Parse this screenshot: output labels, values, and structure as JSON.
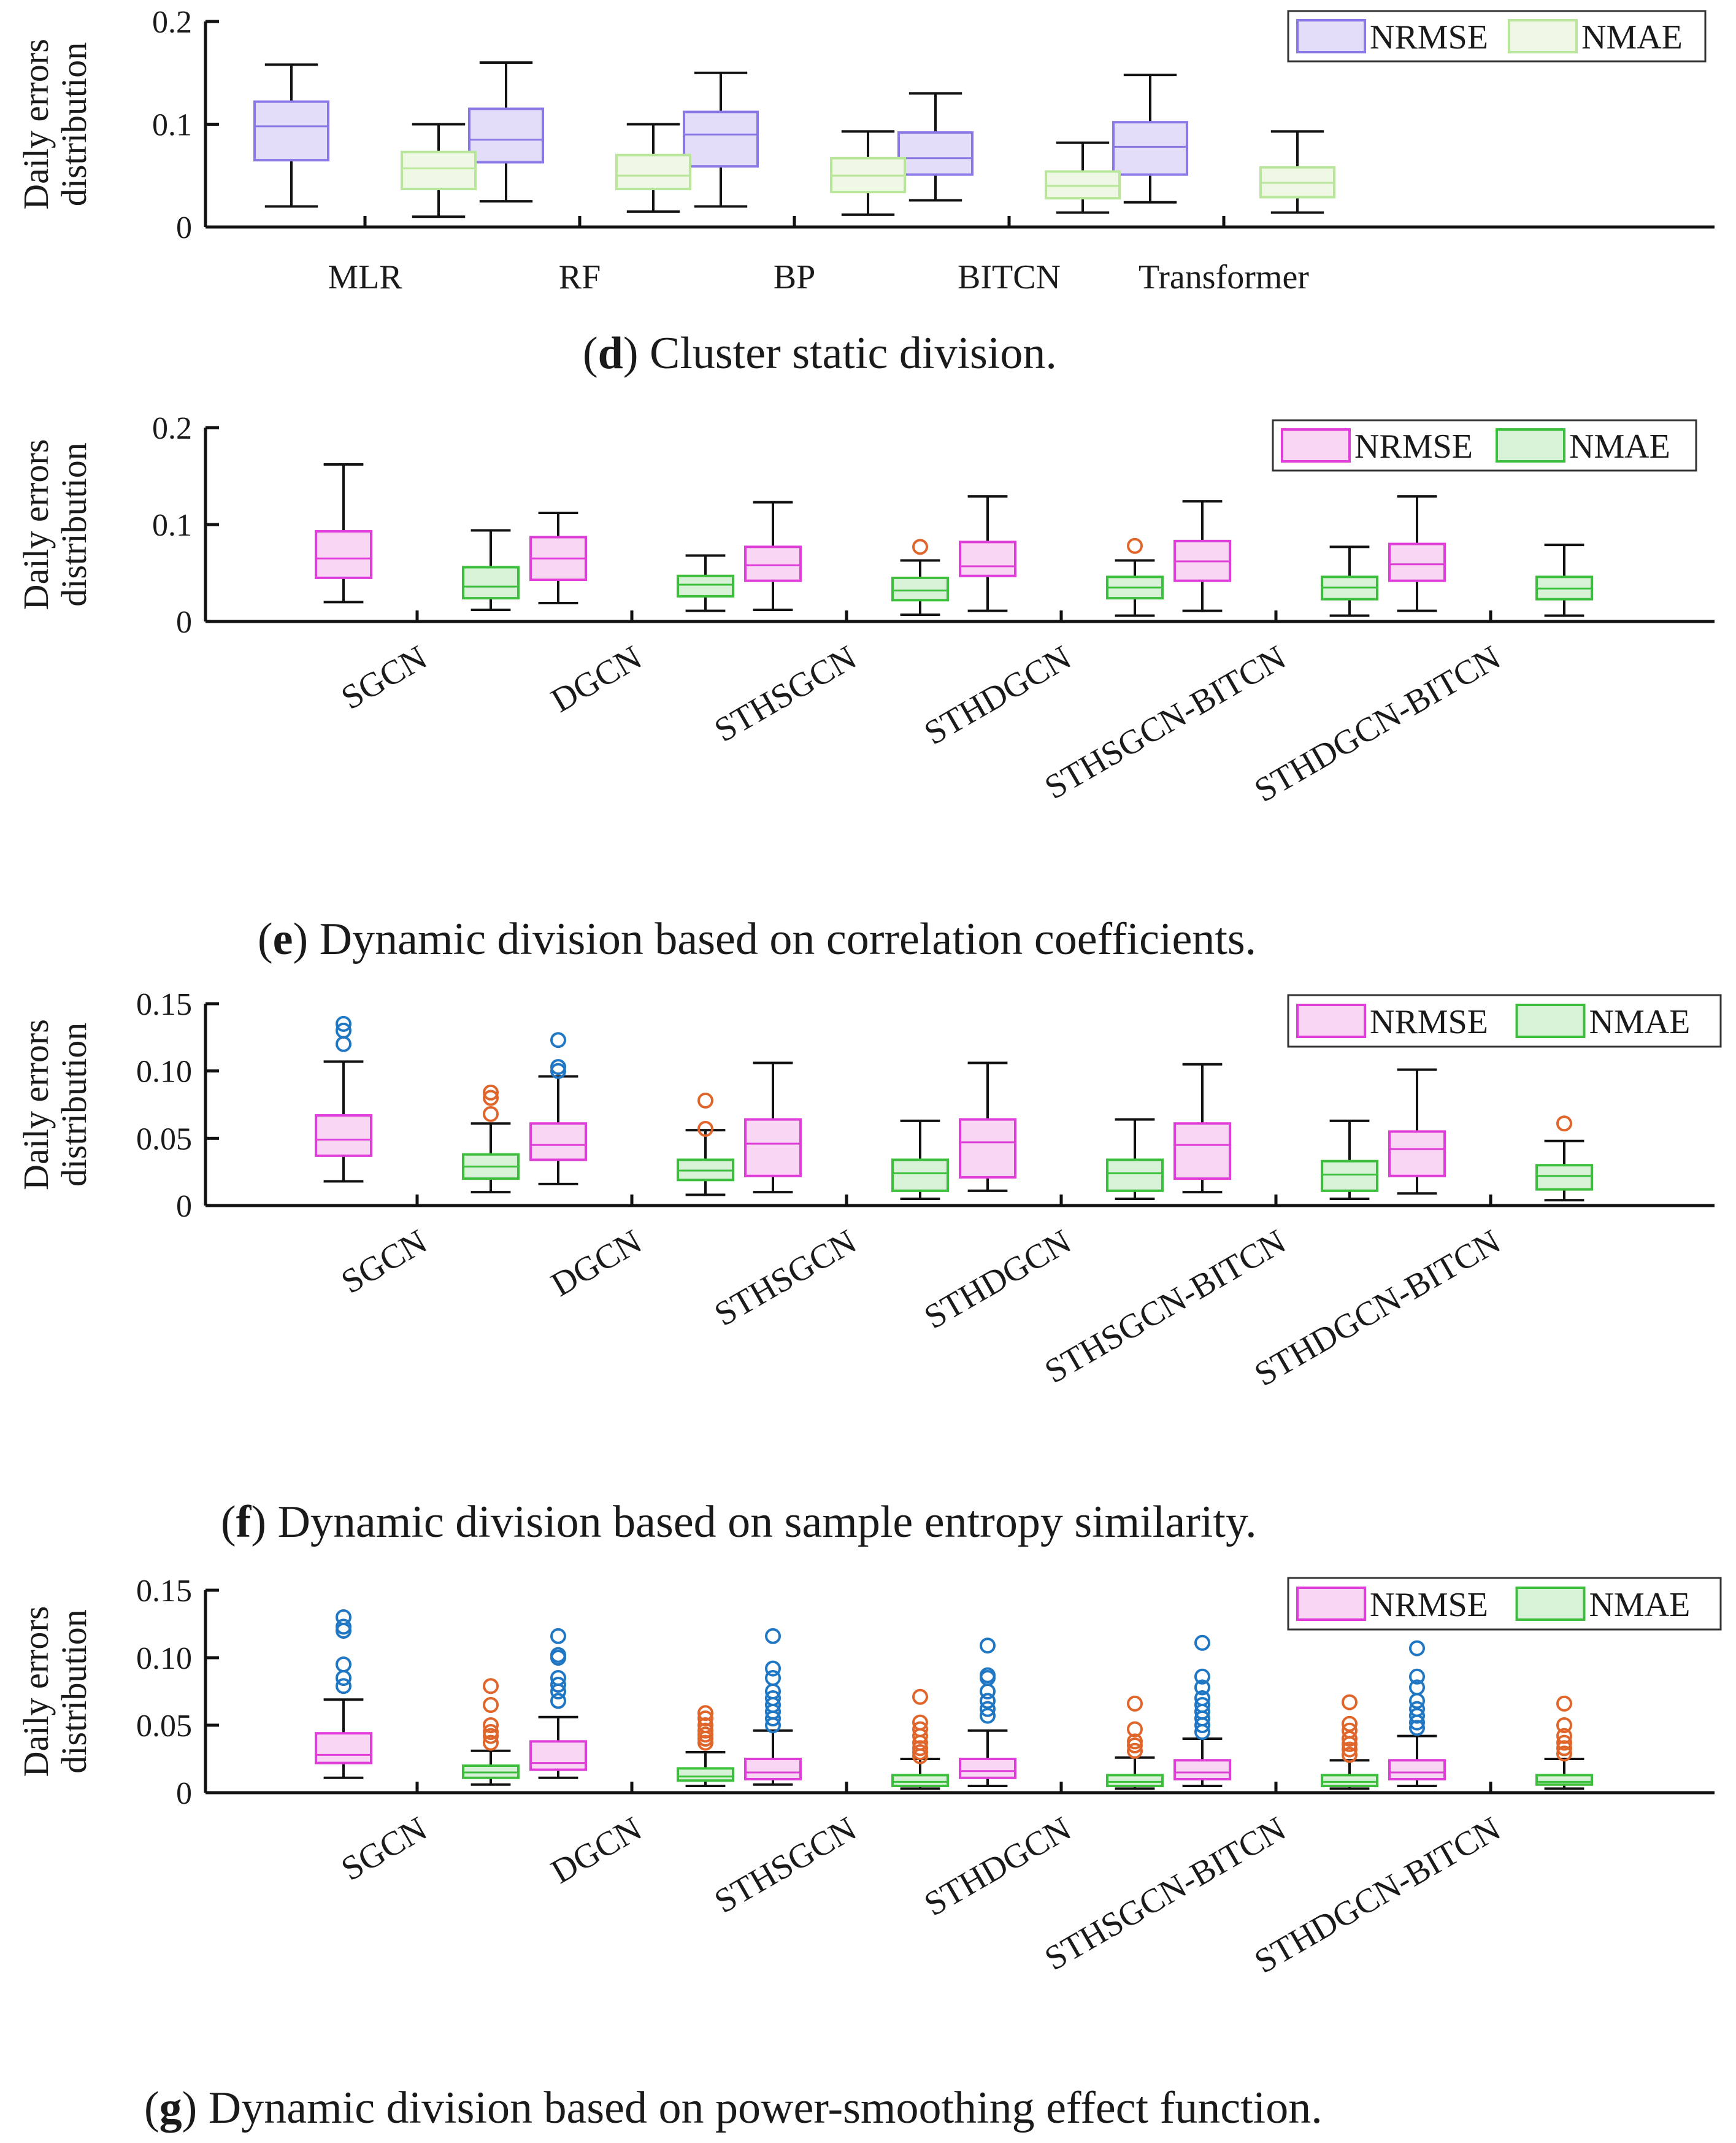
{
  "chart_data": [
    {
      "id": "d",
      "type": "boxplot",
      "caption_letter": "d",
      "caption_text": "Cluster static division.",
      "ylabel": [
        "Daily errors",
        "distribution"
      ],
      "ylim": [
        0,
        0.2
      ],
      "yticks": [
        0,
        0.1,
        0.2
      ],
      "ytick_labels": [
        "0",
        "0.1",
        "0.2"
      ],
      "categories": [
        "MLR",
        "RF",
        "BP",
        "BITCN",
        "Transformer"
      ],
      "rotate_labels": false,
      "colors": {
        "NRMSE": {
          "stroke": "#8a78e6",
          "fill": "#e3ddfa"
        },
        "NMAE": {
          "stroke": "#b9e69a",
          "fill": "#eef8e4"
        }
      },
      "legend": [
        "NRMSE",
        "NMAE"
      ],
      "series": [
        {
          "name": "NRMSE",
          "boxes": [
            {
              "min": 0.02,
              "q1": 0.065,
              "median": 0.098,
              "q3": 0.122,
              "max": 0.158,
              "outliers": []
            },
            {
              "min": 0.025,
              "q1": 0.063,
              "median": 0.085,
              "q3": 0.115,
              "max": 0.16,
              "outliers": []
            },
            {
              "min": 0.02,
              "q1": 0.059,
              "median": 0.09,
              "q3": 0.112,
              "max": 0.15,
              "outliers": []
            },
            {
              "min": 0.026,
              "q1": 0.051,
              "median": 0.067,
              "q3": 0.092,
              "max": 0.13,
              "outliers": []
            },
            {
              "min": 0.024,
              "q1": 0.051,
              "median": 0.078,
              "q3": 0.102,
              "max": 0.148,
              "outliers": []
            }
          ]
        },
        {
          "name": "NMAE",
          "boxes": [
            {
              "min": 0.01,
              "q1": 0.037,
              "median": 0.057,
              "q3": 0.073,
              "max": 0.1,
              "outliers": []
            },
            {
              "min": 0.015,
              "q1": 0.037,
              "median": 0.05,
              "q3": 0.07,
              "max": 0.1,
              "outliers": []
            },
            {
              "min": 0.012,
              "q1": 0.034,
              "median": 0.05,
              "q3": 0.067,
              "max": 0.093,
              "outliers": []
            },
            {
              "min": 0.014,
              "q1": 0.028,
              "median": 0.04,
              "q3": 0.054,
              "max": 0.082,
              "outliers": []
            },
            {
              "min": 0.014,
              "q1": 0.029,
              "median": 0.043,
              "q3": 0.058,
              "max": 0.093,
              "outliers": []
            }
          ]
        }
      ]
    },
    {
      "id": "e",
      "type": "boxplot",
      "caption_letter": "e",
      "caption_text": "Dynamic division based on correlation coefficients.",
      "ylabel": [
        "Daily errors",
        "distribution"
      ],
      "ylim": [
        0,
        0.2
      ],
      "yticks": [
        0,
        0.1,
        0.2
      ],
      "ytick_labels": [
        "0",
        "0.1",
        "0.2"
      ],
      "categories": [
        "SGCN",
        "DGCN",
        "STHSGCN",
        "STHDGCN",
        "STHSGCN-BITCN",
        "STHDGCN-BITCN"
      ],
      "rotate_labels": true,
      "colors": {
        "NRMSE": {
          "stroke": "#e03ed8",
          "fill": "#f8d6f4"
        },
        "NMAE": {
          "stroke": "#3dbf3d",
          "fill": "#d8f2d8"
        }
      },
      "outlier_colors": {
        "NRMSE": "#1f77c4",
        "NMAE": "#e0652a"
      },
      "legend": [
        "NRMSE",
        "NMAE"
      ],
      "series": [
        {
          "name": "NRMSE",
          "boxes": [
            {
              "min": 0.02,
              "q1": 0.045,
              "median": 0.065,
              "q3": 0.093,
              "max": 0.162,
              "outliers": []
            },
            {
              "min": 0.019,
              "q1": 0.043,
              "median": 0.065,
              "q3": 0.087,
              "max": 0.112,
              "outliers": []
            },
            {
              "min": 0.012,
              "q1": 0.042,
              "median": 0.058,
              "q3": 0.077,
              "max": 0.123,
              "outliers": []
            },
            {
              "min": 0.011,
              "q1": 0.047,
              "median": 0.057,
              "q3": 0.082,
              "max": 0.129,
              "outliers": []
            },
            {
              "min": 0.011,
              "q1": 0.042,
              "median": 0.062,
              "q3": 0.083,
              "max": 0.124,
              "outliers": []
            },
            {
              "min": 0.011,
              "q1": 0.042,
              "median": 0.059,
              "q3": 0.08,
              "max": 0.129,
              "outliers": []
            }
          ]
        },
        {
          "name": "NMAE",
          "boxes": [
            {
              "min": 0.012,
              "q1": 0.024,
              "median": 0.036,
              "q3": 0.056,
              "max": 0.094,
              "outliers": []
            },
            {
              "min": 0.011,
              "q1": 0.026,
              "median": 0.038,
              "q3": 0.047,
              "max": 0.068,
              "outliers": []
            },
            {
              "min": 0.007,
              "q1": 0.022,
              "median": 0.032,
              "q3": 0.045,
              "max": 0.063,
              "outliers": [
                0.077
              ]
            },
            {
              "min": 0.006,
              "q1": 0.024,
              "median": 0.035,
              "q3": 0.046,
              "max": 0.063,
              "outliers": [
                0.078
              ]
            },
            {
              "min": 0.006,
              "q1": 0.023,
              "median": 0.035,
              "q3": 0.046,
              "max": 0.077,
              "outliers": []
            },
            {
              "min": 0.006,
              "q1": 0.023,
              "median": 0.034,
              "q3": 0.046,
              "max": 0.079,
              "outliers": []
            }
          ]
        }
      ]
    },
    {
      "id": "f",
      "type": "boxplot",
      "caption_letter": "f",
      "caption_text": "Dynamic division based on sample entropy similarity.",
      "ylabel": [
        "Daily errors",
        "distribution"
      ],
      "ylim": [
        0,
        0.15
      ],
      "yticks": [
        0,
        0.05,
        0.1,
        0.15
      ],
      "ytick_labels": [
        "0",
        "0.05",
        "0.10",
        "0.15"
      ],
      "categories": [
        "SGCN",
        "DGCN",
        "STHSGCN",
        "STHDGCN",
        "STHSGCN-BITCN",
        "STHDGCN-BITCN"
      ],
      "rotate_labels": true,
      "colors": {
        "NRMSE": {
          "stroke": "#e03ed8",
          "fill": "#f8d6f4"
        },
        "NMAE": {
          "stroke": "#3dbf3d",
          "fill": "#d8f2d8"
        }
      },
      "outlier_colors": {
        "NRMSE": "#1f77c4",
        "NMAE": "#e0652a"
      },
      "legend": [
        "NRMSE",
        "NMAE"
      ],
      "series": [
        {
          "name": "NRMSE",
          "boxes": [
            {
              "min": 0.018,
              "q1": 0.037,
              "median": 0.049,
              "q3": 0.067,
              "max": 0.107,
              "outliers": [
                0.12,
                0.13,
                0.135
              ]
            },
            {
              "min": 0.016,
              "q1": 0.034,
              "median": 0.045,
              "q3": 0.061,
              "max": 0.096,
              "outliers": [
                0.1,
                0.103,
                0.123
              ]
            },
            {
              "min": 0.01,
              "q1": 0.022,
              "median": 0.046,
              "q3": 0.064,
              "max": 0.106,
              "outliers": []
            },
            {
              "min": 0.011,
              "q1": 0.021,
              "median": 0.047,
              "q3": 0.064,
              "max": 0.106,
              "outliers": []
            },
            {
              "min": 0.01,
              "q1": 0.02,
              "median": 0.045,
              "q3": 0.061,
              "max": 0.105,
              "outliers": []
            },
            {
              "min": 0.009,
              "q1": 0.022,
              "median": 0.042,
              "q3": 0.055,
              "max": 0.101,
              "outliers": []
            }
          ]
        },
        {
          "name": "NMAE",
          "boxes": [
            {
              "min": 0.01,
              "q1": 0.02,
              "median": 0.029,
              "q3": 0.038,
              "max": 0.061,
              "outliers": [
                0.068,
                0.08,
                0.084
              ]
            },
            {
              "min": 0.008,
              "q1": 0.019,
              "median": 0.026,
              "q3": 0.034,
              "max": 0.056,
              "outliers": [
                0.057,
                0.078
              ]
            },
            {
              "min": 0.005,
              "q1": 0.011,
              "median": 0.024,
              "q3": 0.034,
              "max": 0.063,
              "outliers": []
            },
            {
              "min": 0.005,
              "q1": 0.011,
              "median": 0.024,
              "q3": 0.034,
              "max": 0.064,
              "outliers": []
            },
            {
              "min": 0.005,
              "q1": 0.011,
              "median": 0.023,
              "q3": 0.033,
              "max": 0.063,
              "outliers": []
            },
            {
              "min": 0.004,
              "q1": 0.012,
              "median": 0.022,
              "q3": 0.03,
              "max": 0.048,
              "outliers": [
                0.061
              ]
            }
          ]
        }
      ]
    },
    {
      "id": "g",
      "type": "boxplot",
      "caption_letter": "g",
      "caption_text": "Dynamic division based on power-smoothing effect function.",
      "ylabel": [
        "Daily errors",
        "distribution"
      ],
      "ylim": [
        0,
        0.15
      ],
      "yticks": [
        0,
        0.05,
        0.1,
        0.15
      ],
      "ytick_labels": [
        "0",
        "0.05",
        "0.10",
        "0.15"
      ],
      "categories": [
        "SGCN",
        "DGCN",
        "STHSGCN",
        "STHDGCN",
        "STHSGCN-BITCN",
        "STHDGCN-BITCN"
      ],
      "rotate_labels": true,
      "colors": {
        "NRMSE": {
          "stroke": "#e03ed8",
          "fill": "#f8d6f4"
        },
        "NMAE": {
          "stroke": "#3dbf3d",
          "fill": "#d8f2d8"
        }
      },
      "outlier_colors": {
        "NRMSE": "#1f77c4",
        "NMAE": "#e0652a"
      },
      "legend": [
        "NRMSE",
        "NMAE"
      ],
      "series": [
        {
          "name": "NRMSE",
          "boxes": [
            {
              "min": 0.011,
              "q1": 0.022,
              "median": 0.028,
              "q3": 0.044,
              "max": 0.069,
              "outliers": [
                0.079,
                0.085,
                0.095,
                0.12,
                0.123,
                0.13
              ]
            },
            {
              "min": 0.011,
              "q1": 0.017,
              "median": 0.022,
              "q3": 0.038,
              "max": 0.056,
              "outliers": [
                0.068,
                0.075,
                0.08,
                0.085,
                0.1,
                0.102,
                0.116
              ]
            },
            {
              "min": 0.006,
              "q1": 0.01,
              "median": 0.015,
              "q3": 0.025,
              "max": 0.046,
              "outliers": [
                0.05,
                0.055,
                0.06,
                0.065,
                0.07,
                0.075,
                0.085,
                0.092,
                0.116
              ]
            },
            {
              "min": 0.005,
              "q1": 0.011,
              "median": 0.016,
              "q3": 0.025,
              "max": 0.046,
              "outliers": [
                0.057,
                0.062,
                0.068,
                0.075,
                0.085,
                0.087,
                0.109
              ]
            },
            {
              "min": 0.005,
              "q1": 0.01,
              "median": 0.015,
              "q3": 0.024,
              "max": 0.04,
              "outliers": [
                0.045,
                0.05,
                0.055,
                0.06,
                0.065,
                0.07,
                0.078,
                0.086,
                0.111
              ]
            },
            {
              "min": 0.005,
              "q1": 0.01,
              "median": 0.015,
              "q3": 0.024,
              "max": 0.042,
              "outliers": [
                0.048,
                0.052,
                0.057,
                0.062,
                0.068,
                0.078,
                0.086,
                0.107
              ]
            }
          ]
        },
        {
          "name": "NMAE",
          "boxes": [
            {
              "min": 0.006,
              "q1": 0.011,
              "median": 0.015,
              "q3": 0.02,
              "max": 0.031,
              "outliers": [
                0.037,
                0.042,
                0.045,
                0.05,
                0.065,
                0.079
              ]
            },
            {
              "min": 0.005,
              "q1": 0.009,
              "median": 0.012,
              "q3": 0.018,
              "max": 0.03,
              "outliers": [
                0.037,
                0.04,
                0.043,
                0.046,
                0.05,
                0.055,
                0.059
              ]
            },
            {
              "min": 0.003,
              "q1": 0.005,
              "median": 0.008,
              "q3": 0.013,
              "max": 0.025,
              "outliers": [
                0.027,
                0.03,
                0.033,
                0.037,
                0.042,
                0.047,
                0.052,
                0.071
              ]
            },
            {
              "min": 0.003,
              "q1": 0.005,
              "median": 0.008,
              "q3": 0.013,
              "max": 0.026,
              "outliers": [
                0.031,
                0.035,
                0.038,
                0.047,
                0.066
              ]
            },
            {
              "min": 0.003,
              "q1": 0.005,
              "median": 0.008,
              "q3": 0.013,
              "max": 0.024,
              "outliers": [
                0.028,
                0.032,
                0.036,
                0.04,
                0.046,
                0.051,
                0.067
              ]
            },
            {
              "min": 0.003,
              "q1": 0.006,
              "median": 0.008,
              "q3": 0.013,
              "max": 0.025,
              "outliers": [
                0.029,
                0.033,
                0.037,
                0.042,
                0.05,
                0.066
              ]
            }
          ]
        }
      ]
    }
  ]
}
